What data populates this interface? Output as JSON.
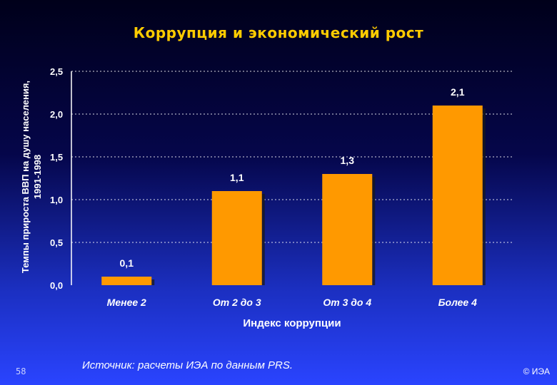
{
  "slide": {
    "page_number": "58",
    "source": "Источник:  расчеты ИЭА по данным PRS.",
    "copyright": "© ИЭА"
  },
  "chart_data": {
    "type": "bar",
    "title": "Коррупция и экономический рост",
    "xlabel": "Индекс коррупции",
    "ylabel_lines": [
      "Темпы прироста ВВП на душу населения,",
      "1991-1998"
    ],
    "categories": [
      "Менее 2",
      "От 2 до 3",
      "От 3 до 4",
      "Более 4"
    ],
    "values": [
      0.1,
      1.1,
      1.3,
      2.1
    ],
    "data_labels": [
      "0,1",
      "1,1",
      "1,3",
      "2,1"
    ],
    "ylim": [
      0,
      2.5
    ],
    "yticks": [
      0,
      0.5,
      1.0,
      1.5,
      2.0,
      2.5
    ],
    "ytick_labels": [
      "0,0",
      "0,5",
      "1,0",
      "1,5",
      "2,0",
      "2,5"
    ],
    "grid": true,
    "colors": {
      "bar": "#ff9900",
      "bar_shadow": "#1a1a1a",
      "title": "#ffcc00",
      "text": "#ffffff",
      "grid": "#ffffff"
    }
  }
}
